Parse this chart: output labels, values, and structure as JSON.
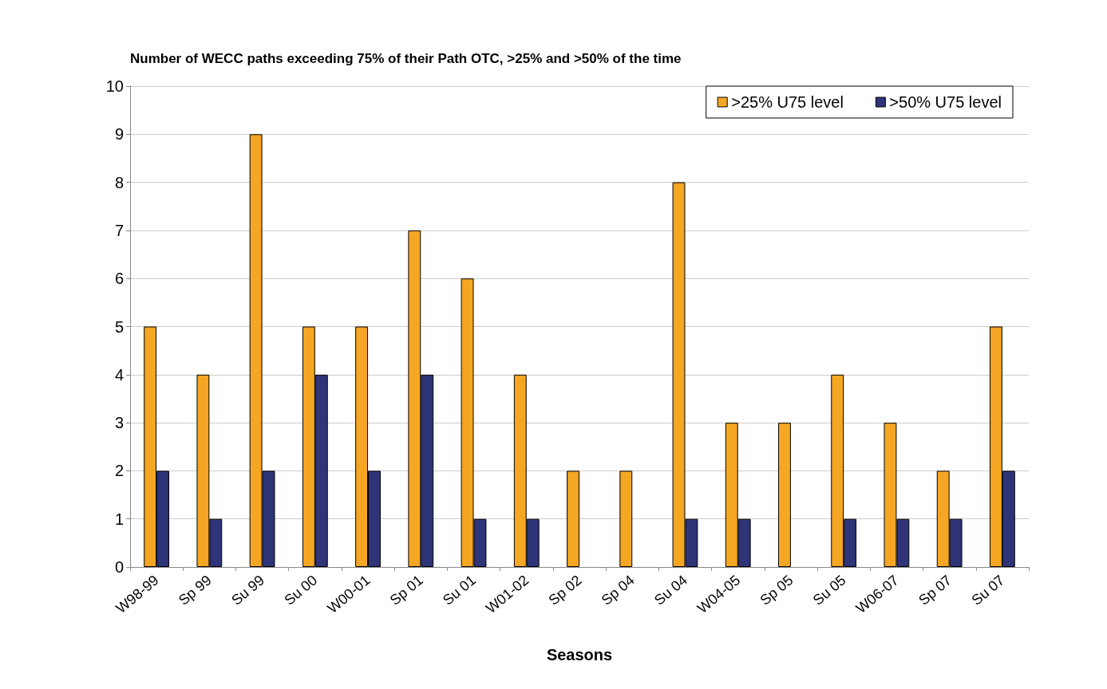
{
  "chart_data": {
    "type": "bar",
    "title": "Number of WECC paths exceeding 75% of their Path OTC, >25% and >50% of the time",
    "xlabel": "Seasons",
    "categories": [
      "W98-99",
      "Sp 99",
      "Su 99",
      "Su 00",
      "W00-01",
      "Sp 01",
      "Su 01",
      "W01-02",
      "Sp 02",
      "Sp 04",
      "Su 04",
      "W04-05",
      "Sp 05",
      "Su 05",
      "W06-07",
      "Sp 07",
      "Su 07"
    ],
    "series": [
      {
        "name": ">25% U75 level",
        "color": "#f5a623",
        "values": [
          5,
          4,
          9,
          5,
          5,
          7,
          6,
          4,
          2,
          2,
          8,
          3,
          3,
          4,
          3,
          2,
          5
        ]
      },
      {
        "name": ">50% U75 level",
        "color": "#2e3477",
        "values": [
          2,
          1,
          2,
          4,
          2,
          4,
          1,
          1,
          0,
          0,
          1,
          1,
          0,
          1,
          1,
          1,
          2
        ]
      }
    ],
    "ylim": [
      0,
      10
    ],
    "yticks": [
      0,
      1,
      2,
      3,
      4,
      5,
      6,
      7,
      8,
      9,
      10
    ],
    "grid": "y",
    "legend": "top right"
  }
}
